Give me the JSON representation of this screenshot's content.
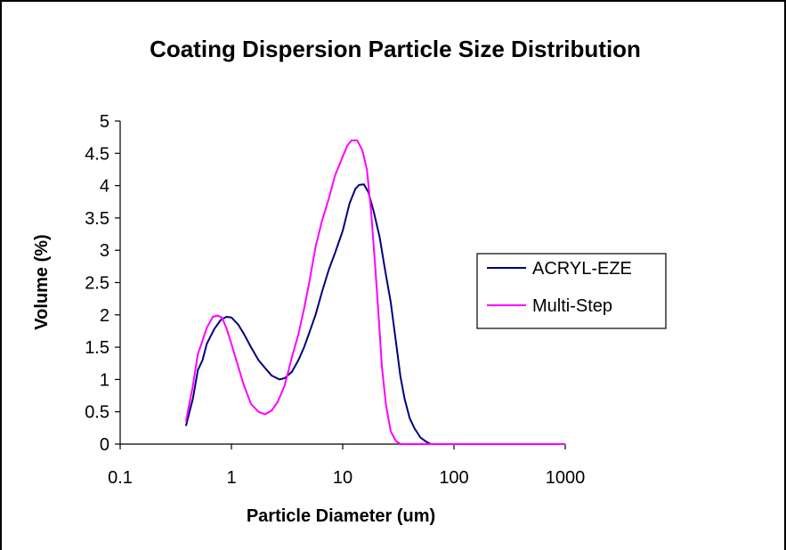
{
  "chart_data": {
    "type": "line",
    "title": "Coating Dispersion Particle Size Distribution",
    "xlabel": "Particle Diameter (um)",
    "ylabel": "Volume (%)",
    "x_scale": "log",
    "xlim": [
      0.1,
      1000
    ],
    "ylim": [
      0,
      5
    ],
    "x_ticks": [
      0.1,
      1,
      10,
      100,
      1000
    ],
    "x_tick_labels": [
      "0.1",
      "1",
      "10",
      "100",
      "1000"
    ],
    "y_ticks": [
      0,
      0.5,
      1,
      1.5,
      2,
      2.5,
      3,
      3.5,
      4,
      4.5,
      5
    ],
    "y_tick_labels": [
      "0",
      "0.5",
      "1",
      "1.5",
      "2",
      "2.5",
      "3",
      "3.5",
      "4",
      "4.5",
      "5"
    ],
    "grid": false,
    "legend": "right",
    "series": [
      {
        "name": "ACRYL-EZE",
        "color": "#000080",
        "points": [
          [
            0.39,
            0.28
          ],
          [
            0.45,
            0.7
          ],
          [
            0.5,
            1.15
          ],
          [
            0.55,
            1.3
          ],
          [
            0.6,
            1.55
          ],
          [
            0.7,
            1.78
          ],
          [
            0.8,
            1.92
          ],
          [
            0.9,
            1.97
          ],
          [
            1.0,
            1.96
          ],
          [
            1.15,
            1.85
          ],
          [
            1.3,
            1.7
          ],
          [
            1.5,
            1.5
          ],
          [
            1.75,
            1.3
          ],
          [
            2.0,
            1.18
          ],
          [
            2.3,
            1.06
          ],
          [
            2.7,
            1.0
          ],
          [
            3.0,
            1.02
          ],
          [
            3.5,
            1.12
          ],
          [
            4.0,
            1.3
          ],
          [
            4.5,
            1.5
          ],
          [
            5.0,
            1.72
          ],
          [
            5.7,
            2.0
          ],
          [
            6.5,
            2.35
          ],
          [
            7.5,
            2.7
          ],
          [
            8.5,
            2.95
          ],
          [
            10.0,
            3.3
          ],
          [
            11.5,
            3.72
          ],
          [
            13.0,
            3.95
          ],
          [
            14.0,
            4.01
          ],
          [
            15.5,
            4.02
          ],
          [
            17.0,
            3.9
          ],
          [
            19.0,
            3.6
          ],
          [
            21.5,
            3.2
          ],
          [
            24.0,
            2.7
          ],
          [
            27.0,
            2.2
          ],
          [
            30.0,
            1.6
          ],
          [
            33.0,
            1.05
          ],
          [
            36.0,
            0.7
          ],
          [
            40.0,
            0.4
          ],
          [
            44.0,
            0.25
          ],
          [
            50.0,
            0.1
          ],
          [
            57.0,
            0.03
          ],
          [
            62.0,
            0.0
          ],
          [
            100.0,
            0.0
          ],
          [
            1000.0,
            0.0
          ]
        ]
      },
      {
        "name": "Multi-Step",
        "color": "#FF00FF",
        "points": [
          [
            0.39,
            0.35
          ],
          [
            0.45,
            0.9
          ],
          [
            0.5,
            1.4
          ],
          [
            0.55,
            1.6
          ],
          [
            0.6,
            1.8
          ],
          [
            0.68,
            1.97
          ],
          [
            0.75,
            1.99
          ],
          [
            0.82,
            1.96
          ],
          [
            0.9,
            1.8
          ],
          [
            1.0,
            1.55
          ],
          [
            1.15,
            1.2
          ],
          [
            1.3,
            0.9
          ],
          [
            1.5,
            0.62
          ],
          [
            1.75,
            0.5
          ],
          [
            2.0,
            0.46
          ],
          [
            2.3,
            0.52
          ],
          [
            2.6,
            0.65
          ],
          [
            3.0,
            0.9
          ],
          [
            3.5,
            1.35
          ],
          [
            4.0,
            1.7
          ],
          [
            4.5,
            2.1
          ],
          [
            5.0,
            2.5
          ],
          [
            5.7,
            3.05
          ],
          [
            6.5,
            3.45
          ],
          [
            7.5,
            3.8
          ],
          [
            8.5,
            4.15
          ],
          [
            10.0,
            4.45
          ],
          [
            11.0,
            4.62
          ],
          [
            12.0,
            4.7
          ],
          [
            13.5,
            4.7
          ],
          [
            15.0,
            4.55
          ],
          [
            16.5,
            4.25
          ],
          [
            18.0,
            3.6
          ],
          [
            19.5,
            2.8
          ],
          [
            21.0,
            2.0
          ],
          [
            22.5,
            1.2
          ],
          [
            24.5,
            0.6
          ],
          [
            27.0,
            0.2
          ],
          [
            30.0,
            0.05
          ],
          [
            33.0,
            0.0
          ],
          [
            100.0,
            0.0
          ],
          [
            1000.0,
            0.0
          ]
        ]
      }
    ]
  }
}
